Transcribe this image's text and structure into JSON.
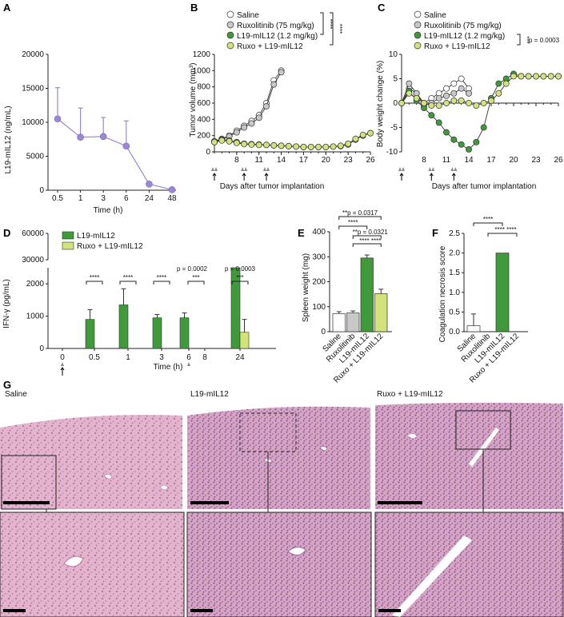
{
  "panels": {
    "A": "A",
    "B": "B",
    "C": "C",
    "D": "D",
    "E": "E",
    "F": "F",
    "G": "G"
  },
  "colors": {
    "saline": "#ffffff",
    "ruxolitinib": "#c8c8c8",
    "l19": "#3f9b3a",
    "combo": "#d3e27a",
    "pk": "#9b87d6",
    "tissue": "#d79ab8"
  },
  "chart_data": [
    {
      "id": "A",
      "type": "line",
      "ylabel": "L19-mIL12 (ng/mL)",
      "xlabel": "Time (h)",
      "categories": [
        "0.5",
        "1",
        "3",
        "6",
        "24",
        "48"
      ],
      "yticks": [
        "0",
        "5000",
        "10000",
        "15000",
        "20000"
      ],
      "ylim": [
        0,
        20000
      ],
      "series": [
        {
          "values": [
            10500,
            7800,
            7900,
            6500,
            900,
            80
          ],
          "err": [
            4600,
            4300,
            2800,
            3700,
            0,
            0
          ]
        }
      ]
    },
    {
      "id": "B",
      "type": "line",
      "ylabel": "Tumor volume (mm³)",
      "xlabel": "Days after tumor implantation",
      "xticks": [
        "8",
        "11",
        "14",
        "17",
        "20",
        "23",
        "26"
      ],
      "xlim": [
        5,
        26
      ],
      "yticks": [
        "0",
        "200",
        "400",
        "600",
        "800",
        "1000",
        "1200"
      ],
      "ylim": [
        0,
        1200
      ],
      "legend": [
        "Saline",
        "Ruxolitinib (75 mg/kg)",
        "L19-mIL12 (1.2 mg/kg)",
        "Ruxo + L19-mIL12"
      ],
      "significance": [
        "****",
        "****"
      ],
      "series": [
        {
          "name": "Saline",
          "x": [
            5,
            6,
            7,
            8,
            9,
            10,
            11,
            12,
            13,
            14
          ],
          "y": [
            130,
            160,
            200,
            260,
            320,
            380,
            450,
            600,
            880,
            1000
          ]
        },
        {
          "name": "Ruxolitinib (75 mg/kg)",
          "x": [
            5,
            6,
            7,
            8,
            9,
            10,
            11,
            12,
            13,
            14
          ],
          "y": [
            120,
            150,
            190,
            240,
            300,
            350,
            420,
            560,
            830,
            980
          ]
        },
        {
          "name": "L19-mIL12 (1.2 mg/kg)",
          "x": [
            5,
            6,
            7,
            8,
            9,
            10,
            11,
            12,
            13,
            14,
            15,
            16,
            17,
            18,
            19,
            20,
            21,
            22,
            23,
            24,
            25,
            26
          ],
          "y": [
            130,
            150,
            140,
            120,
            100,
            95,
            90,
            85,
            80,
            75,
            70,
            65,
            60,
            60,
            60,
            60,
            65,
            70,
            90,
            150,
            200,
            230
          ]
        },
        {
          "name": "Ruxo + L19-mIL12",
          "x": [
            5,
            6,
            7,
            8,
            9,
            10,
            11,
            12,
            13,
            14,
            15,
            16,
            17,
            18,
            19,
            20,
            21,
            22,
            23,
            24,
            25,
            26
          ],
          "y": [
            120,
            140,
            130,
            110,
            95,
            90,
            85,
            85,
            80,
            75,
            70,
            65,
            60,
            60,
            60,
            60,
            65,
            75,
            100,
            160,
            210,
            230
          ]
        }
      ]
    },
    {
      "id": "C",
      "type": "line",
      "ylabel": "Body weight change (%)",
      "xlabel": "Days after tumor implantation",
      "xticks": [
        "8",
        "11",
        "14",
        "17",
        "20",
        "23",
        "26"
      ],
      "xlim": [
        5,
        26
      ],
      "yticks": [
        "-10",
        "-5",
        "0",
        "5",
        "10"
      ],
      "ylim": [
        -10,
        10
      ],
      "legend": [
        "Saline",
        "Ruxolitinib (75 mg/kg)",
        "L19-mIL12 (1.2 mg/kg)",
        "Ruxo + L19-mIL12"
      ],
      "significance": [
        "***",
        "p = 0.0003"
      ],
      "series": [
        {
          "name": "Saline",
          "x": [
            5,
            6,
            7,
            8,
            9,
            10,
            11,
            12,
            13,
            14
          ],
          "y": [
            0,
            3,
            2,
            0,
            1,
            2,
            3,
            4,
            5,
            3
          ]
        },
        {
          "name": "Ruxolitinib (75 mg/kg)",
          "x": [
            5,
            6,
            7,
            8,
            9,
            10,
            11,
            12,
            13,
            14
          ],
          "y": [
            0,
            4,
            2,
            -0.5,
            0,
            1,
            1.5,
            2,
            3,
            2
          ]
        },
        {
          "name": "L19-mIL12 (1.2 mg/kg)",
          "x": [
            5,
            6,
            7,
            8,
            9,
            10,
            11,
            12,
            13,
            14,
            15,
            16,
            17,
            18,
            19,
            20,
            21,
            22,
            23,
            24,
            25,
            26
          ],
          "y": [
            0,
            2.5,
            0.5,
            -1,
            -2.5,
            -4,
            -6,
            -7.5,
            -8.5,
            -9.5,
            -8,
            -5,
            1,
            4,
            5,
            6,
            5.5,
            5.5,
            5.5,
            5.5,
            5.5,
            5.5
          ]
        },
        {
          "name": "Ruxo + L19-mIL12",
          "x": [
            5,
            6,
            7,
            8,
            9,
            10,
            11,
            12,
            13,
            14,
            15,
            16,
            17,
            18,
            19,
            20,
            21,
            22,
            23,
            24,
            25,
            26
          ],
          "y": [
            0,
            2,
            1,
            0,
            -0.5,
            -0.5,
            0,
            0.5,
            0.5,
            0,
            -0.5,
            0,
            0.5,
            2,
            4,
            5.5,
            5.5,
            5.5,
            5.5,
            5.5,
            5.5,
            5.5
          ]
        }
      ]
    },
    {
      "id": "D",
      "type": "bar",
      "ylabel": "IFN-γ (pg/mL)",
      "xlabel": "Time (h)",
      "categories": [
        "0",
        "0.5",
        "1",
        "3",
        "6",
        "8",
        "24"
      ],
      "yticks_low": [
        "0",
        "1000",
        "2000"
      ],
      "yticks_high": [
        "30000",
        "60000"
      ],
      "legend": [
        "L19-mIL12",
        "Ruxo + L19-mIL12"
      ],
      "series": [
        {
          "name": "L19-mIL12",
          "values": [
            0,
            900,
            1350,
            950,
            950,
            0,
            2600
          ],
          "err": [
            0,
            300,
            500,
            100,
            150,
            0,
            0
          ]
        },
        {
          "name": "Ruxo + L19-mIL12",
          "values": [
            0,
            0,
            0,
            0,
            0,
            0,
            500
          ],
          "err": [
            0,
            0,
            0,
            0,
            0,
            0,
            400
          ]
        }
      ],
      "annotations": [
        "****",
        "****",
        "****",
        "p = 0.0002",
        "***",
        "p = 0.0003",
        "***"
      ]
    },
    {
      "id": "E",
      "type": "bar",
      "ylabel": "Spleen weight (mg)",
      "categories": [
        "Saline",
        "Ruxolitinib",
        "L19-mIL12",
        "Ruxo + L19-mIL12"
      ],
      "yticks": [
        "0",
        "100",
        "200",
        "300",
        "400"
      ],
      "ylim": [
        0,
        400
      ],
      "values": [
        72,
        75,
        295,
        152
      ],
      "err": [
        8,
        8,
        12,
        18
      ],
      "annotations": [
        "**p = 0.0317",
        "****",
        "**p = 0.0321",
        "****",
        "****"
      ]
    },
    {
      "id": "F",
      "type": "bar",
      "ylabel": "Coagulation necrosis score",
      "categories": [
        "Saline",
        "Ruxolitinib",
        "L19-mIL12",
        "Ruxo + L19-mIL12"
      ],
      "yticks": [
        "0.0",
        "0.5",
        "1.0",
        "1.5",
        "2.0",
        "2.5"
      ],
      "ylim": [
        0,
        2.5
      ],
      "values": [
        0.15,
        0,
        2.0,
        0
      ],
      "err": [
        0.3,
        0,
        0,
        0
      ],
      "annotations": [
        "****",
        "****",
        "****"
      ]
    }
  ],
  "histology": {
    "titles": [
      "Saline",
      "L19-mIL12",
      "Ruxo + L19-mIL12"
    ]
  }
}
